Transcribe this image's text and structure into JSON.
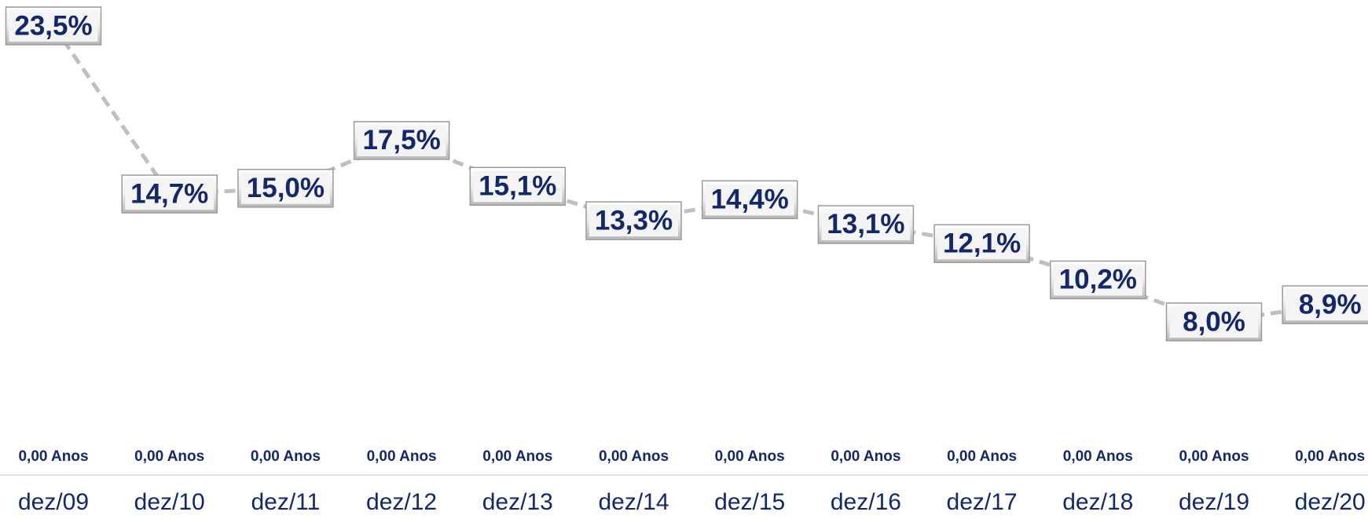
{
  "chart_data": {
    "type": "line",
    "categories": [
      "dez/09",
      "dez/10",
      "dez/11",
      "dez/12",
      "dez/13",
      "dez/14",
      "dez/15",
      "dez/16",
      "dez/17",
      "dez/18",
      "dez/19",
      "dez/20"
    ],
    "category_sublabels": [
      "0,00 Anos",
      "0,00 Anos",
      "0,00 Anos",
      "0,00 Anos",
      "0,00 Anos",
      "0,00 Anos",
      "0,00 Anos",
      "0,00 Anos",
      "0,00 Anos",
      "0,00 Anos",
      "0,00 Anos",
      "0,00 Anos"
    ],
    "values": [
      23.5,
      14.7,
      15.0,
      17.5,
      15.1,
      13.3,
      14.4,
      13.1,
      12.1,
      10.2,
      8.0,
      8.9
    ],
    "value_labels": [
      "23,5%",
      "14,7%",
      "15,0%",
      "17,5%",
      "15,1%",
      "13,3%",
      "14,4%",
      "13,1%",
      "12,1%",
      "10,2%",
      "8,0%",
      "8,9%"
    ],
    "color": "#bfbfbf"
  }
}
